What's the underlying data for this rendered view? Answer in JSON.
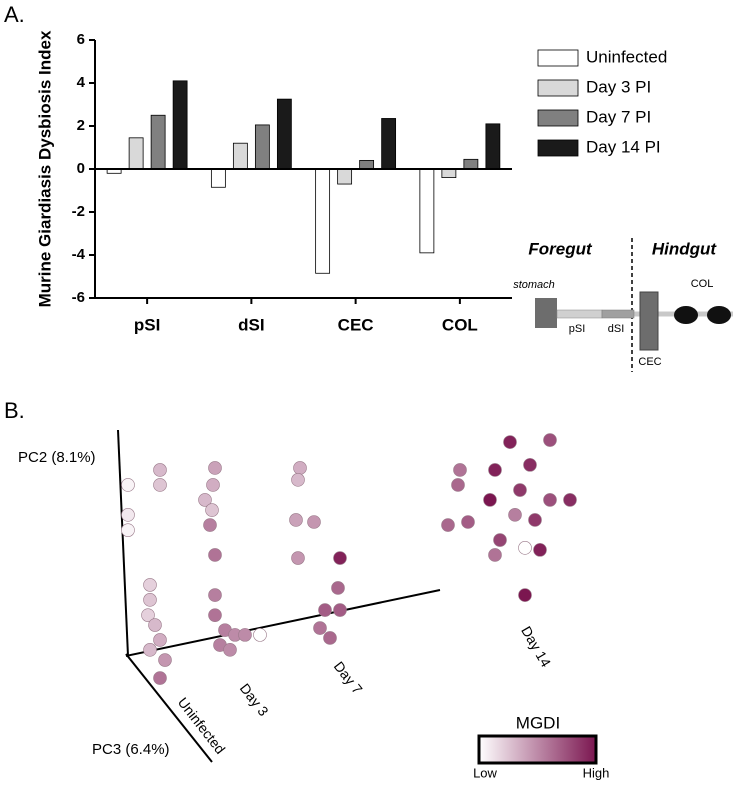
{
  "panel_a_label": "A.",
  "panel_b_label": "B.",
  "chart_data": [
    {
      "type": "bar",
      "y_label": "Murine Giardiasis Dysbiosis Index",
      "categories": [
        "pSI",
        "dSI",
        "CEC",
        "COL"
      ],
      "series": [
        {
          "name": "Uninfected",
          "color": "#ffffff",
          "values": [
            -0.2,
            -0.85,
            -4.85,
            -3.9
          ]
        },
        {
          "name": "Day 3 PI",
          "color": "#d9d9d9",
          "values": [
            1.45,
            1.2,
            -0.7,
            -0.4
          ]
        },
        {
          "name": "Day 7 PI",
          "color": "#808080",
          "values": [
            2.5,
            2.05,
            0.4,
            0.45
          ]
        },
        {
          "name": "Day 14 PI",
          "color": "#1a1a1a",
          "values": [
            4.1,
            3.25,
            2.35,
            2.1
          ]
        }
      ],
      "ylim": [
        -6,
        6
      ],
      "yticks": [
        -6,
        -4,
        -2,
        0,
        2,
        4,
        6
      ],
      "legend": "right"
    },
    {
      "type": "scatter",
      "x_axis_label": "PC3 (6.4%)",
      "y_axis_label": "PC2 (8.1%)",
      "group_labels": [
        "Uninfected",
        "Day 3",
        "Day 7",
        "Day 14"
      ],
      "x": [
        5.6,
        5.6,
        5.6,
        12,
        12,
        10,
        10,
        9.6,
        11,
        12,
        10,
        13,
        12,
        23,
        22.6,
        21,
        22.4,
        22,
        23,
        23,
        23,
        25,
        27,
        29,
        24,
        26,
        32,
        40,
        39.6,
        39.2,
        42.8,
        39.6,
        48,
        47.6,
        48,
        45,
        44,
        46,
        72,
        71.6,
        69.6,
        73.6,
        82,
        90,
        86,
        79,
        78,
        84,
        90,
        94,
        87,
        83,
        80,
        85,
        88,
        79,
        85
      ],
      "y": [
        80.9,
        72.1,
        67.6,
        85.3,
        80.9,
        51.5,
        47.1,
        42.6,
        39.7,
        35.3,
        32.4,
        29.4,
        24.1,
        85.9,
        80.9,
        76.5,
        73.5,
        69.1,
        60.3,
        48.5,
        42.6,
        38.2,
        36.8,
        36.8,
        33.8,
        32.4,
        36.8,
        85.9,
        82.4,
        70.6,
        70,
        59.4,
        59.4,
        50.6,
        44.1,
        44.1,
        38.8,
        35.9,
        85.3,
        80.9,
        69.1,
        70,
        93.5,
        94.1,
        86.8,
        85.3,
        76.5,
        79.4,
        76.5,
        76.5,
        70.6,
        72.1,
        64.7,
        62.4,
        61.8,
        60.3,
        48.5
      ],
      "color_values": [
        0.05,
        0.1,
        0.05,
        0.3,
        0.25,
        0.2,
        0.25,
        0.2,
        0.3,
        0.35,
        0.3,
        0.45,
        0.6,
        0.4,
        0.35,
        0.3,
        0.25,
        0.55,
        0.6,
        0.55,
        0.6,
        0.55,
        0.5,
        0.5,
        0.55,
        0.5,
        0.0,
        0.35,
        0.3,
        0.4,
        0.45,
        0.45,
        0.95,
        0.65,
        0.7,
        0.7,
        0.6,
        0.65,
        0.6,
        0.65,
        0.65,
        0.7,
        0.95,
        0.75,
        0.9,
        0.95,
        1.0,
        0.85,
        0.75,
        0.9,
        0.85,
        0.55,
        0.8,
        0.0,
        0.95,
        0.6,
        1.0
      ],
      "xlim": [
        0,
        100
      ],
      "ylim": [
        0,
        100
      ],
      "colorscale": {
        "title": "MGDI",
        "low_label": "Low",
        "high_label": "High",
        "colors": [
          "#ffffff",
          "#7b1650"
        ]
      }
    }
  ],
  "gut_diagram": {
    "foregut": "Foregut",
    "hindgut": "Hindgut",
    "stomach": "stomach",
    "psi": "pSI",
    "dsi": "dSI",
    "cec": "CEC",
    "col": "COL"
  }
}
